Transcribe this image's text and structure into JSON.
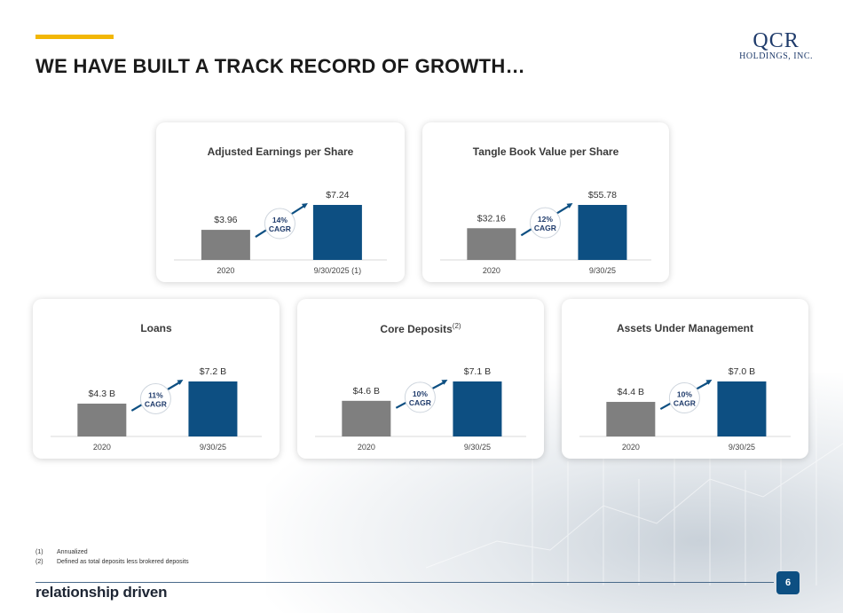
{
  "header": {
    "title": "WE HAVE BUILT A TRACK RECORD OF GROWTH…",
    "logo_line1": "QCR",
    "logo_line2": "HOLDINGS, INC."
  },
  "colors": {
    "accent": "#f2b705",
    "bar_start": "#7f7f7f",
    "bar_end": "#0d4f82",
    "cagr_text": "#1f3b6b"
  },
  "cards": [
    {
      "title": "Adjusted Earnings per Share",
      "sup": "",
      "cagr_pct": "14%",
      "cagr_word": "CAGR"
    },
    {
      "title": "Tangle Book Value per Share",
      "sup": "",
      "cagr_pct": "12%",
      "cagr_word": "CAGR"
    },
    {
      "title": "Loans",
      "sup": "",
      "cagr_pct": "11%",
      "cagr_word": "CAGR"
    },
    {
      "title": "Core Deposits",
      "sup": "(2)",
      "cagr_pct": "10%",
      "cagr_word": "CAGR"
    },
    {
      "title": "Assets Under Management",
      "sup": "",
      "cagr_pct": "10%",
      "cagr_word": "CAGR"
    }
  ],
  "chart_data": [
    {
      "type": "bar",
      "title": "Adjusted Earnings per Share",
      "categories": [
        "2020",
        "9/30/2025 (1)"
      ],
      "values": [
        3.96,
        7.24
      ],
      "labels": [
        "$3.96",
        "$7.24"
      ]
    },
    {
      "type": "bar",
      "title": "Tangle Book Value per Share",
      "categories": [
        "2020",
        "9/30/25"
      ],
      "values": [
        32.16,
        55.78
      ],
      "labels": [
        "$32.16",
        "$55.78"
      ]
    },
    {
      "type": "bar",
      "title": "Loans",
      "categories": [
        "2020",
        "9/30/25"
      ],
      "values": [
        4.3,
        7.2
      ],
      "labels": [
        "$4.3 B",
        "$7.2 B"
      ]
    },
    {
      "type": "bar",
      "title": "Core Deposits",
      "categories": [
        "2020",
        "9/30/25"
      ],
      "values": [
        4.6,
        7.1
      ],
      "labels": [
        "$4.6 B",
        "$7.1 B"
      ]
    },
    {
      "type": "bar",
      "title": "Assets Under Management",
      "categories": [
        "2020",
        "9/30/25"
      ],
      "values": [
        4.4,
        7.0
      ],
      "labels": [
        "$4.4 B",
        "$7.0 B"
      ]
    }
  ],
  "footnotes": [
    {
      "num": "(1)",
      "text": "Annualized"
    },
    {
      "num": "(2)",
      "text": "Defined as total deposits less brokered deposits"
    }
  ],
  "footer": {
    "tagline": "relationship driven",
    "page_number": "6"
  }
}
